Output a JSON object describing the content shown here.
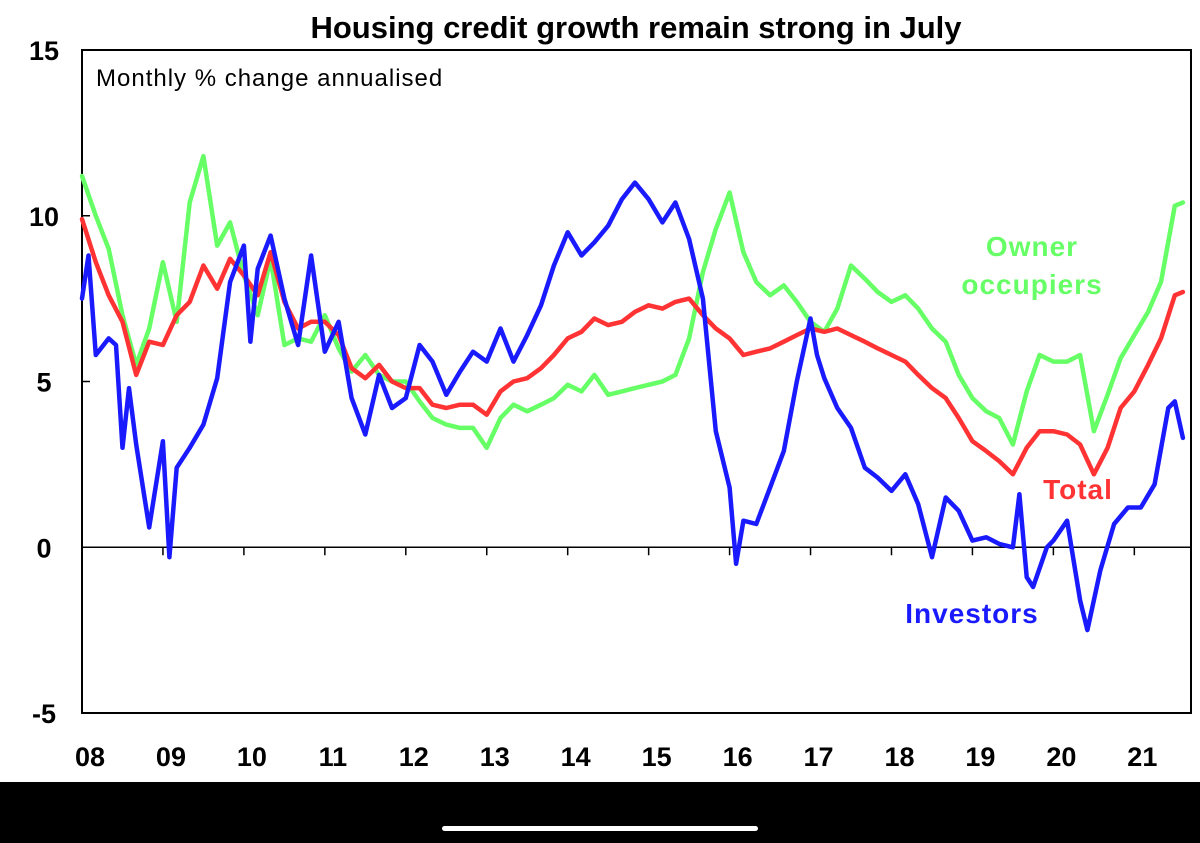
{
  "chart_data": {
    "type": "line",
    "title": "Housing credit growth remain strong in July",
    "subtitle": "Monthly % change annualised",
    "ylim": [
      -5,
      15
    ],
    "y_ticks": [
      "15",
      "10",
      "5",
      "0",
      "-5"
    ],
    "x_ticks": [
      "08",
      "09",
      "10",
      "11",
      "12",
      "13",
      "14",
      "15",
      "16",
      "17",
      "18",
      "19",
      "20",
      "21"
    ],
    "x_range": [
      2008.0,
      2021.7
    ],
    "grid": false,
    "legend": "inline labels next to lines",
    "series": [
      {
        "name": "Owner occupiers",
        "label_lines": [
          "Owner",
          "occupiers"
        ],
        "color": "#66ff66",
        "points": [
          [
            2008.0,
            11.2
          ],
          [
            2008.17,
            10.0
          ],
          [
            2008.33,
            9.0
          ],
          [
            2008.5,
            7.0
          ],
          [
            2008.67,
            5.5
          ],
          [
            2008.83,
            6.6
          ],
          [
            2009.0,
            8.6
          ],
          [
            2009.17,
            6.8
          ],
          [
            2009.33,
            10.4
          ],
          [
            2009.5,
            11.8
          ],
          [
            2009.67,
            9.1
          ],
          [
            2009.83,
            9.8
          ],
          [
            2010.0,
            8.2
          ],
          [
            2010.17,
            7.0
          ],
          [
            2010.33,
            8.7
          ],
          [
            2010.5,
            6.1
          ],
          [
            2010.67,
            6.3
          ],
          [
            2010.83,
            6.2
          ],
          [
            2011.0,
            7.0
          ],
          [
            2011.17,
            6.0
          ],
          [
            2011.33,
            5.3
          ],
          [
            2011.5,
            5.8
          ],
          [
            2011.67,
            5.2
          ],
          [
            2011.83,
            5.0
          ],
          [
            2012.0,
            5.0
          ],
          [
            2012.17,
            4.4
          ],
          [
            2012.33,
            3.9
          ],
          [
            2012.5,
            3.7
          ],
          [
            2012.67,
            3.6
          ],
          [
            2012.83,
            3.6
          ],
          [
            2013.0,
            3.0
          ],
          [
            2013.17,
            3.9
          ],
          [
            2013.33,
            4.3
          ],
          [
            2013.5,
            4.1
          ],
          [
            2013.67,
            4.3
          ],
          [
            2013.83,
            4.5
          ],
          [
            2014.0,
            4.9
          ],
          [
            2014.17,
            4.7
          ],
          [
            2014.33,
            5.2
          ],
          [
            2014.5,
            4.6
          ],
          [
            2014.67,
            4.7
          ],
          [
            2014.83,
            4.8
          ],
          [
            2015.0,
            4.9
          ],
          [
            2015.17,
            5.0
          ],
          [
            2015.33,
            5.2
          ],
          [
            2015.5,
            6.3
          ],
          [
            2015.67,
            8.3
          ],
          [
            2015.83,
            9.6
          ],
          [
            2016.0,
            10.7
          ],
          [
            2016.17,
            8.9
          ],
          [
            2016.33,
            8.0
          ],
          [
            2016.5,
            7.6
          ],
          [
            2016.67,
            7.9
          ],
          [
            2016.83,
            7.4
          ],
          [
            2017.0,
            6.8
          ],
          [
            2017.17,
            6.5
          ],
          [
            2017.33,
            7.2
          ],
          [
            2017.5,
            8.5
          ],
          [
            2017.67,
            8.1
          ],
          [
            2017.83,
            7.7
          ],
          [
            2018.0,
            7.4
          ],
          [
            2018.17,
            7.6
          ],
          [
            2018.33,
            7.2
          ],
          [
            2018.5,
            6.6
          ],
          [
            2018.67,
            6.2
          ],
          [
            2018.83,
            5.2
          ],
          [
            2019.0,
            4.5
          ],
          [
            2019.17,
            4.1
          ],
          [
            2019.33,
            3.9
          ],
          [
            2019.5,
            3.1
          ],
          [
            2019.67,
            4.7
          ],
          [
            2019.83,
            5.8
          ],
          [
            2020.0,
            5.6
          ],
          [
            2020.17,
            5.6
          ],
          [
            2020.33,
            5.8
          ],
          [
            2020.5,
            3.5
          ],
          [
            2020.67,
            4.6
          ],
          [
            2020.83,
            5.7
          ],
          [
            2021.0,
            6.4
          ],
          [
            2021.17,
            7.1
          ],
          [
            2021.33,
            8.0
          ],
          [
            2021.5,
            10.3
          ],
          [
            2021.6,
            10.4
          ]
        ]
      },
      {
        "name": "Total",
        "label_lines": [
          "Total"
        ],
        "color": "#ff3333",
        "points": [
          [
            2008.0,
            9.9
          ],
          [
            2008.17,
            8.6
          ],
          [
            2008.33,
            7.6
          ],
          [
            2008.5,
            6.8
          ],
          [
            2008.67,
            5.2
          ],
          [
            2008.83,
            6.2
          ],
          [
            2009.0,
            6.1
          ],
          [
            2009.17,
            7.0
          ],
          [
            2009.33,
            7.4
          ],
          [
            2009.5,
            8.5
          ],
          [
            2009.67,
            7.8
          ],
          [
            2009.83,
            8.7
          ],
          [
            2010.0,
            8.2
          ],
          [
            2010.17,
            7.6
          ],
          [
            2010.33,
            8.9
          ],
          [
            2010.5,
            7.4
          ],
          [
            2010.67,
            6.6
          ],
          [
            2010.83,
            6.8
          ],
          [
            2011.0,
            6.8
          ],
          [
            2011.17,
            6.4
          ],
          [
            2011.33,
            5.4
          ],
          [
            2011.5,
            5.1
          ],
          [
            2011.67,
            5.5
          ],
          [
            2011.83,
            5.0
          ],
          [
            2012.0,
            4.8
          ],
          [
            2012.17,
            4.8
          ],
          [
            2012.33,
            4.3
          ],
          [
            2012.5,
            4.2
          ],
          [
            2012.67,
            4.3
          ],
          [
            2012.83,
            4.3
          ],
          [
            2013.0,
            4.0
          ],
          [
            2013.17,
            4.7
          ],
          [
            2013.33,
            5.0
          ],
          [
            2013.5,
            5.1
          ],
          [
            2013.67,
            5.4
          ],
          [
            2013.83,
            5.8
          ],
          [
            2014.0,
            6.3
          ],
          [
            2014.17,
            6.5
          ],
          [
            2014.33,
            6.9
          ],
          [
            2014.5,
            6.7
          ],
          [
            2014.67,
            6.8
          ],
          [
            2014.83,
            7.1
          ],
          [
            2015.0,
            7.3
          ],
          [
            2015.17,
            7.2
          ],
          [
            2015.33,
            7.4
          ],
          [
            2015.5,
            7.5
          ],
          [
            2015.67,
            7.0
          ],
          [
            2015.83,
            6.6
          ],
          [
            2016.0,
            6.3
          ],
          [
            2016.17,
            5.8
          ],
          [
            2016.33,
            5.9
          ],
          [
            2016.5,
            6.0
          ],
          [
            2016.67,
            6.2
          ],
          [
            2016.83,
            6.4
          ],
          [
            2017.0,
            6.6
          ],
          [
            2017.17,
            6.5
          ],
          [
            2017.33,
            6.6
          ],
          [
            2017.5,
            6.4
          ],
          [
            2017.67,
            6.2
          ],
          [
            2017.83,
            6.0
          ],
          [
            2018.0,
            5.8
          ],
          [
            2018.17,
            5.6
          ],
          [
            2018.33,
            5.2
          ],
          [
            2018.5,
            4.8
          ],
          [
            2018.67,
            4.5
          ],
          [
            2018.83,
            3.9
          ],
          [
            2019.0,
            3.2
          ],
          [
            2019.17,
            2.9
          ],
          [
            2019.33,
            2.6
          ],
          [
            2019.5,
            2.2
          ],
          [
            2019.67,
            3.0
          ],
          [
            2019.83,
            3.5
          ],
          [
            2020.0,
            3.5
          ],
          [
            2020.17,
            3.4
          ],
          [
            2020.33,
            3.1
          ],
          [
            2020.5,
            2.2
          ],
          [
            2020.67,
            3.0
          ],
          [
            2020.83,
            4.2
          ],
          [
            2021.0,
            4.7
          ],
          [
            2021.17,
            5.5
          ],
          [
            2021.33,
            6.3
          ],
          [
            2021.5,
            7.6
          ],
          [
            2021.6,
            7.7
          ]
        ]
      },
      {
        "name": "Investors",
        "label_lines": [
          "Investors"
        ],
        "color": "#1a1aff",
        "points": [
          [
            2008.0,
            7.5
          ],
          [
            2008.08,
            8.8
          ],
          [
            2008.17,
            5.8
          ],
          [
            2008.33,
            6.3
          ],
          [
            2008.42,
            6.1
          ],
          [
            2008.5,
            3.0
          ],
          [
            2008.58,
            4.8
          ],
          [
            2008.67,
            3.1
          ],
          [
            2008.83,
            0.6
          ],
          [
            2009.0,
            3.2
          ],
          [
            2009.08,
            -0.3
          ],
          [
            2009.17,
            2.4
          ],
          [
            2009.33,
            3.0
          ],
          [
            2009.5,
            3.7
          ],
          [
            2009.67,
            5.1
          ],
          [
            2009.83,
            8.0
          ],
          [
            2010.0,
            9.1
          ],
          [
            2010.08,
            6.2
          ],
          [
            2010.17,
            8.4
          ],
          [
            2010.33,
            9.4
          ],
          [
            2010.5,
            7.5
          ],
          [
            2010.67,
            6.1
          ],
          [
            2010.83,
            8.8
          ],
          [
            2011.0,
            5.9
          ],
          [
            2011.17,
            6.8
          ],
          [
            2011.33,
            4.5
          ],
          [
            2011.5,
            3.4
          ],
          [
            2011.67,
            5.2
          ],
          [
            2011.83,
            4.2
          ],
          [
            2012.0,
            4.5
          ],
          [
            2012.17,
            6.1
          ],
          [
            2012.33,
            5.6
          ],
          [
            2012.5,
            4.6
          ],
          [
            2012.67,
            5.3
          ],
          [
            2012.83,
            5.9
          ],
          [
            2013.0,
            5.6
          ],
          [
            2013.17,
            6.6
          ],
          [
            2013.33,
            5.6
          ],
          [
            2013.5,
            6.4
          ],
          [
            2013.67,
            7.3
          ],
          [
            2013.83,
            8.5
          ],
          [
            2014.0,
            9.5
          ],
          [
            2014.17,
            8.8
          ],
          [
            2014.33,
            9.2
          ],
          [
            2014.5,
            9.7
          ],
          [
            2014.67,
            10.5
          ],
          [
            2014.83,
            11.0
          ],
          [
            2015.0,
            10.5
          ],
          [
            2015.17,
            9.8
          ],
          [
            2015.33,
            10.4
          ],
          [
            2015.5,
            9.3
          ],
          [
            2015.67,
            7.5
          ],
          [
            2015.83,
            3.5
          ],
          [
            2016.0,
            1.8
          ],
          [
            2016.08,
            -0.5
          ],
          [
            2016.17,
            0.8
          ],
          [
            2016.33,
            0.7
          ],
          [
            2016.5,
            1.8
          ],
          [
            2016.67,
            2.9
          ],
          [
            2016.83,
            5.0
          ],
          [
            2017.0,
            6.9
          ],
          [
            2017.08,
            5.8
          ],
          [
            2017.17,
            5.1
          ],
          [
            2017.33,
            4.2
          ],
          [
            2017.5,
            3.6
          ],
          [
            2017.67,
            2.4
          ],
          [
            2017.83,
            2.1
          ],
          [
            2018.0,
            1.7
          ],
          [
            2018.17,
            2.2
          ],
          [
            2018.33,
            1.3
          ],
          [
            2018.5,
            -0.3
          ],
          [
            2018.67,
            1.5
          ],
          [
            2018.83,
            1.1
          ],
          [
            2019.0,
            0.2
          ],
          [
            2019.17,
            0.3
          ],
          [
            2019.33,
            0.1
          ],
          [
            2019.5,
            0.0
          ],
          [
            2019.58,
            1.6
          ],
          [
            2019.67,
            -0.9
          ],
          [
            2019.75,
            -1.2
          ],
          [
            2019.92,
            0.0
          ],
          [
            2020.0,
            0.2
          ],
          [
            2020.17,
            0.8
          ],
          [
            2020.33,
            -1.6
          ],
          [
            2020.42,
            -2.5
          ],
          [
            2020.58,
            -0.7
          ],
          [
            2020.75,
            0.7
          ],
          [
            2020.92,
            1.2
          ],
          [
            2021.08,
            1.2
          ],
          [
            2021.25,
            1.9
          ],
          [
            2021.42,
            4.2
          ],
          [
            2021.5,
            4.4
          ],
          [
            2021.6,
            3.3
          ]
        ]
      }
    ]
  }
}
